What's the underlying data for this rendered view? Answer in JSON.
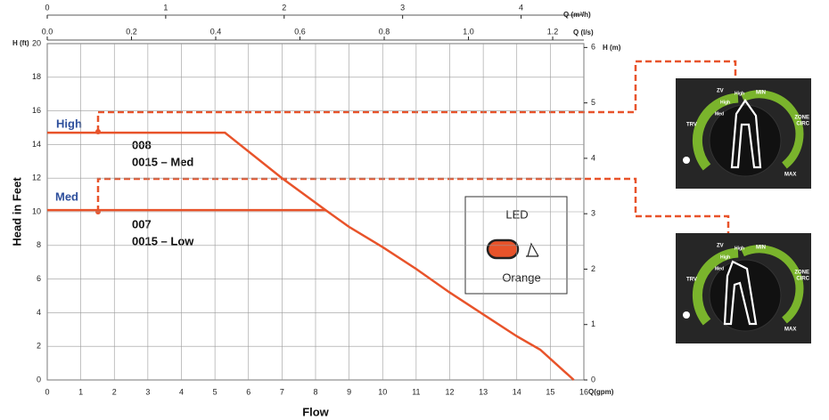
{
  "chart_data": {
    "type": "line",
    "ylabel": "Head in Feet",
    "xlabel": "Flow",
    "y_unit": "H (ft)",
    "y2_unit": "H (m)",
    "x_unit": "Q(gpm)",
    "x2_unit": "Q (m³/h)",
    "x3_unit": "Q (l/s)",
    "xlim": [
      0,
      16
    ],
    "xticks": [
      0,
      1,
      2,
      3,
      4,
      5,
      6,
      7,
      8,
      9,
      10,
      11,
      12,
      13,
      14,
      15,
      16
    ],
    "ylim": [
      0,
      20
    ],
    "yticks": [
      0,
      2,
      4,
      6,
      8,
      10,
      12,
      14,
      16,
      18,
      20
    ],
    "y2lim": [
      0,
      6.07
    ],
    "y2ticks": [
      0,
      1,
      2,
      3,
      4,
      5,
      6
    ],
    "x2lim": [
      0,
      4.53
    ],
    "x2ticks": [
      0,
      1,
      2,
      3,
      4
    ],
    "x3lim": [
      0,
      1.274
    ],
    "x3ticks": [
      {
        "value": 0,
        "label": "0.0"
      },
      0.2,
      0.4,
      0.6,
      0.8,
      {
        "value": 1,
        "label": "1.0"
      },
      1.2
    ],
    "grid": true,
    "series": [
      {
        "color": "#e8532a",
        "x": [
          0,
          5.3,
          7,
          8.3,
          9,
          10,
          11,
          12,
          13,
          14,
          14.7,
          15.7
        ],
        "values": [
          14.7,
          14.7,
          12,
          10.1,
          9.1,
          7.9,
          6.6,
          5.2,
          3.9,
          2.6,
          1.8,
          0
        ]
      },
      {
        "color": "#e8532a",
        "x": [
          0,
          8.3
        ],
        "values": [
          10.1,
          10.1
        ]
      }
    ],
    "annotations": [
      "High",
      "Med",
      "008",
      "0015 – Med",
      "007",
      "0015 – Low"
    ],
    "led": {
      "title": "LED",
      "color_name": "Orange"
    },
    "dials": [
      {
        "labels": [
          "ZV",
          "MIN",
          "TRV",
          "ZONE",
          "CIRC",
          "MAX",
          "High",
          "Med",
          "High"
        ]
      },
      {
        "labels": [
          "ZV",
          "MIN",
          "TRV",
          "ZONE",
          "CIRC",
          "MAX",
          "High",
          "Med",
          "High"
        ]
      }
    ]
  }
}
